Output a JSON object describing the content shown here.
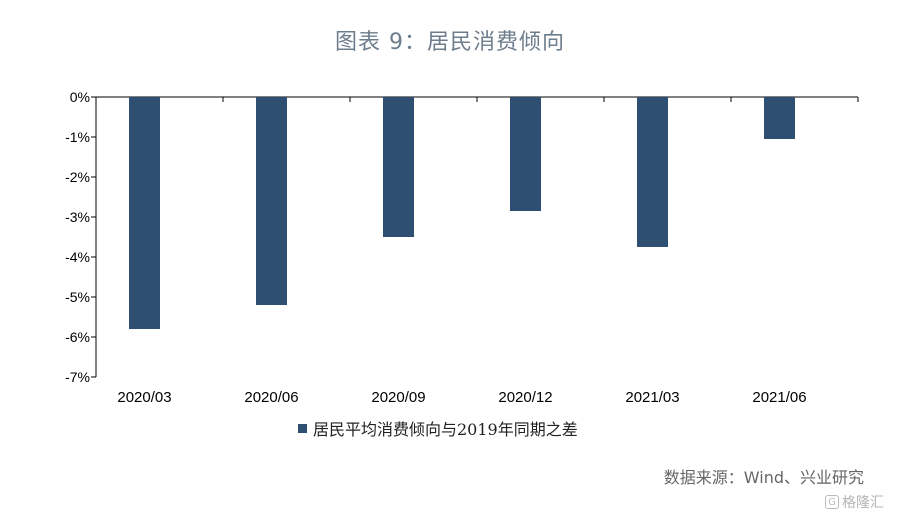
{
  "chart_data": {
    "type": "bar",
    "title": "图表 9：居民消费倾向",
    "categories": [
      "2020/03",
      "2020/06",
      "2020/09",
      "2020/12",
      "2021/03",
      "2021/06"
    ],
    "series": [
      {
        "name": "居民平均消费倾向与2019年同期之差",
        "values": [
          -5.8,
          -5.2,
          -3.5,
          -2.85,
          -3.75,
          -1.05
        ],
        "color": "#2e4f72"
      }
    ],
    "y_ticks": [
      0,
      -1,
      -2,
      -3,
      -4,
      -5,
      -6,
      -7
    ],
    "y_tick_labels": [
      "0%",
      "-1%",
      "-2%",
      "-3%",
      "-4%",
      "-5%",
      "-6%",
      "-7%"
    ],
    "ylim": [
      -7,
      0
    ],
    "xlabel": "",
    "ylabel": "",
    "grid": false,
    "legend": "bottom"
  },
  "source": "数据来源：Wind、兴业研究",
  "watermark": {
    "icon": "gelonghui-logo-icon",
    "text": "格隆汇"
  }
}
